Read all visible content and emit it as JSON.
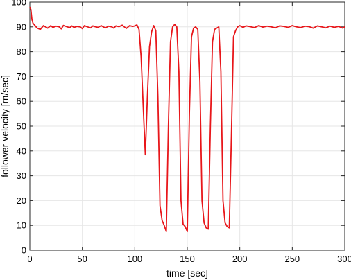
{
  "chart_data": {
    "type": "line",
    "xlabel": "time [sec]",
    "ylabel": "follower velocity [m/sec]",
    "xlim": [
      0,
      300
    ],
    "ylim": [
      0,
      100
    ],
    "xticks": [
      0,
      50,
      100,
      150,
      200,
      250,
      300
    ],
    "yticks": [
      0,
      10,
      20,
      30,
      40,
      50,
      60,
      70,
      80,
      90,
      100
    ],
    "x_tick_labels": [
      "0",
      "50",
      "100",
      "150",
      "200",
      "250",
      "300"
    ],
    "y_tick_labels": [
      "0",
      "10",
      "20",
      "30",
      "40",
      "50",
      "60",
      "70",
      "80",
      "90",
      "100"
    ],
    "grid": true,
    "line_color": "#e8161a",
    "grid_color": "#e6e6e6",
    "series": [
      {
        "x": [
          0,
          1,
          2,
          3,
          4,
          5,
          7,
          10,
          13,
          15,
          17,
          20,
          22,
          25,
          28,
          30,
          32,
          35,
          38,
          40,
          42,
          45,
          48,
          50,
          52,
          55,
          58,
          60,
          62,
          65,
          68,
          70,
          72,
          75,
          78,
          80,
          82,
          85,
          88,
          90,
          92,
          95,
          98,
          100,
          102,
          104,
          106,
          108,
          110,
          112,
          114,
          116,
          118,
          120,
          122,
          124,
          126,
          128,
          130,
          132,
          134,
          136,
          138,
          140,
          142,
          144,
          146,
          148,
          150,
          152,
          154,
          156,
          158,
          160,
          162,
          164,
          166,
          168,
          170,
          172,
          174,
          176,
          178,
          180,
          182,
          184,
          186,
          188,
          190,
          192,
          194,
          196,
          198,
          200,
          203,
          206,
          210,
          214,
          218,
          222,
          226,
          230,
          234,
          238,
          242,
          246,
          250,
          254,
          258,
          262,
          266,
          270,
          274,
          278,
          282,
          286,
          290,
          294,
          298,
          300
        ],
        "y": [
          98,
          97,
          93,
          91.5,
          91,
          90.5,
          89.5,
          89,
          90.5,
          90,
          89.5,
          90.5,
          89.8,
          90.3,
          90,
          89.2,
          90.6,
          90.1,
          89.7,
          90.4,
          89.8,
          90.2,
          90,
          89.3,
          90.5,
          90,
          89.6,
          90.4,
          90.1,
          89.8,
          90.5,
          90,
          89.6,
          90.3,
          90,
          89.5,
          90.4,
          90.1,
          90.7,
          90,
          89.4,
          90.5,
          90.2,
          90.4,
          90.8,
          89,
          78,
          58,
          38.5,
          62,
          82,
          88,
          90.5,
          88.5,
          62,
          18,
          12,
          10,
          7.5,
          50,
          84,
          90,
          91,
          90,
          72,
          20,
          10.5,
          9.5,
          7.5,
          55,
          86,
          89.5,
          90,
          89,
          68,
          20,
          11,
          9,
          8.5,
          50,
          84,
          89,
          89.5,
          90,
          72,
          20,
          11,
          9.5,
          9,
          46,
          86,
          88.5,
          90,
          90.5,
          89.8,
          90.4,
          90.1,
          89.7,
          90.5,
          89.9,
          90.3,
          90,
          89.6,
          90.4,
          90.2,
          89.8,
          90.5,
          90,
          89.7,
          90.3,
          90.1,
          89.5,
          90.4,
          90,
          89.6,
          90.3,
          89.8,
          90.2,
          89.5,
          90
        ]
      }
    ]
  }
}
